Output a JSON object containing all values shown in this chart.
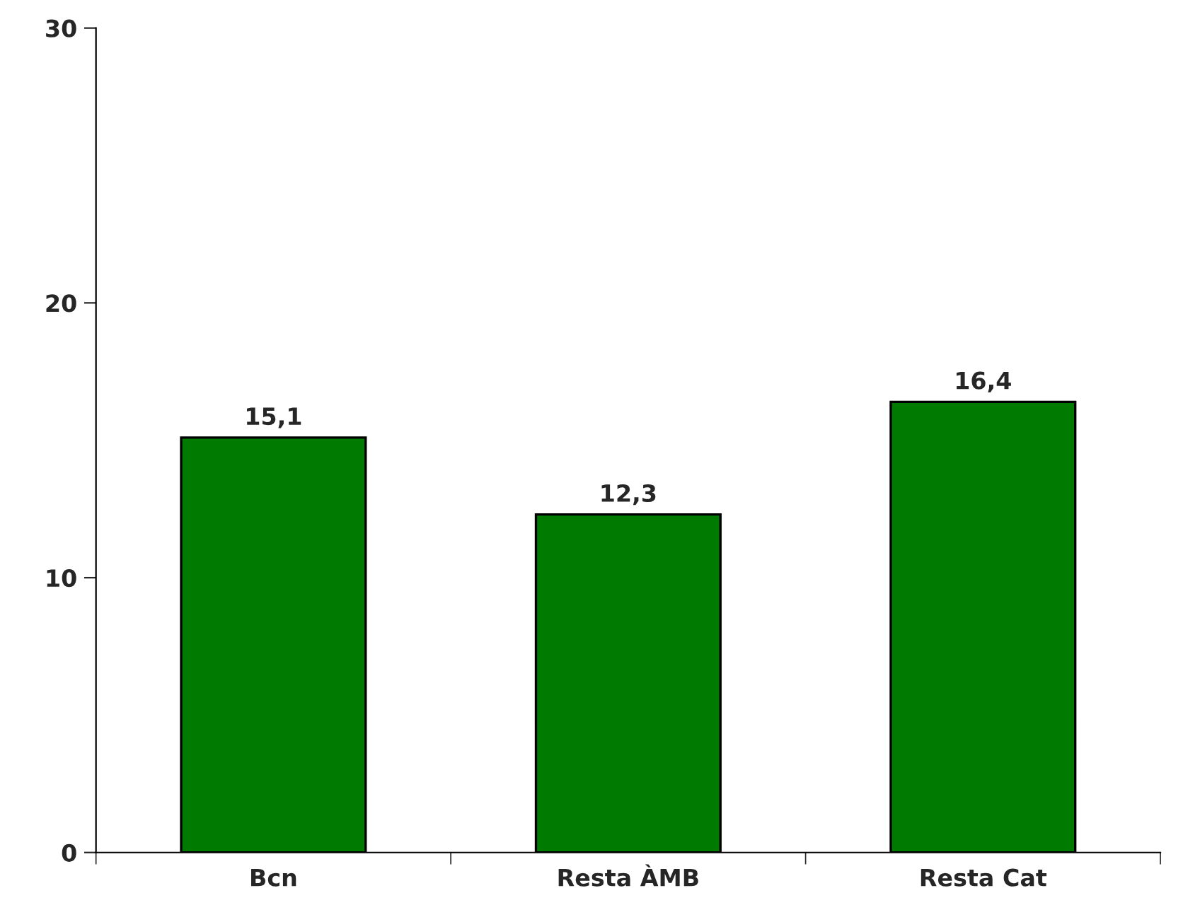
{
  "chart_data": {
    "type": "bar",
    "categories": [
      "Bcn",
      "Resta ÀMB",
      "Resta Cat"
    ],
    "values": [
      15.1,
      12.3,
      16.4
    ],
    "value_labels": [
      "15,1",
      "12,3",
      "16,4"
    ],
    "color": "#007a00",
    "ylim": [
      0,
      30
    ],
    "yticks": [
      0,
      10,
      20,
      30
    ],
    "grid": false,
    "legend": false
  }
}
